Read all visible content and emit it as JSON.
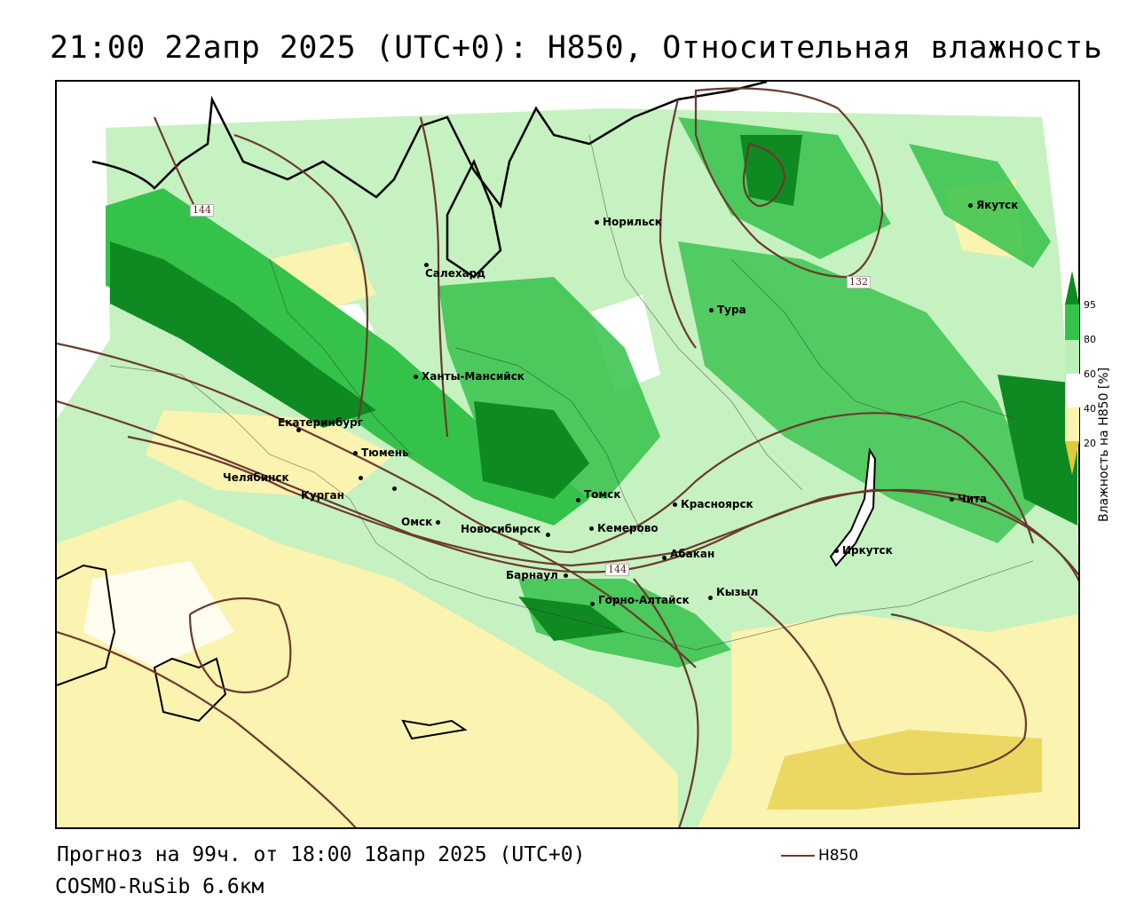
{
  "title": "21:00 22апр 2025 (UTC+0): H850, Относительная влажность",
  "footer": {
    "forecast": "Прогноз на 99ч. от 18:00 18апр 2025 (UTC+0)",
    "model": "COSMO-RuSib 6.6км"
  },
  "legend": {
    "line_label": "H850",
    "line_color": "#6b3a2e"
  },
  "colorbar": {
    "title": "Влажность на H850 [%]",
    "ticks": [
      "95",
      "80",
      "60",
      "40",
      "20"
    ],
    "colors": {
      "95": "#0f8a22",
      "80": "#35c24a",
      "60": "#bdf0b8",
      "40": "#ffffff",
      "20": "#fbf3b0",
      "low": "#e0c93a"
    }
  },
  "cities": [
    {
      "name": "Норильск"
    },
    {
      "name": "Салехард"
    },
    {
      "name": "Тура"
    },
    {
      "name": "Якутск"
    },
    {
      "name": "Ханты-Мансийск"
    },
    {
      "name": "Екатеринбург"
    },
    {
      "name": "Тюмень"
    },
    {
      "name": "Челябинск"
    },
    {
      "name": "Курган"
    },
    {
      "name": "Омск"
    },
    {
      "name": "Новосибирск"
    },
    {
      "name": "Томск"
    },
    {
      "name": "Кемерово"
    },
    {
      "name": "Красноярск"
    },
    {
      "name": "Барнаул"
    },
    {
      "name": "Абакан"
    },
    {
      "name": "Горно-Алтайск"
    },
    {
      "name": "Кызыл"
    },
    {
      "name": "Иркутск"
    },
    {
      "name": "Чита"
    }
  ],
  "contour_labels": [
    "144",
    "132",
    "144"
  ]
}
